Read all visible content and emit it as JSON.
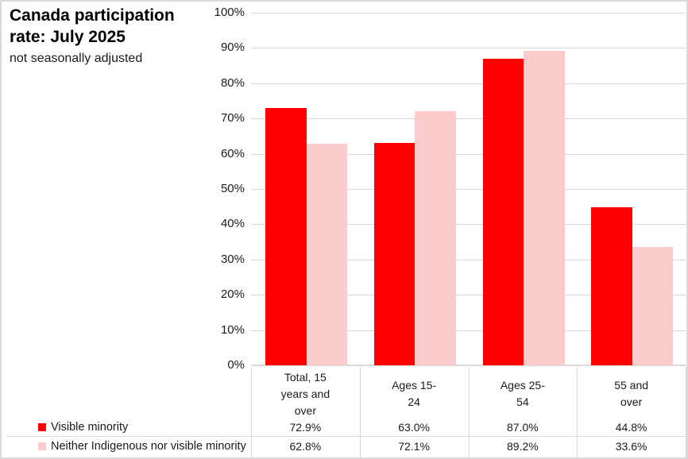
{
  "title": {
    "line1": "Canada participation",
    "line2": "rate: July 2025",
    "subtitle": "not seasonally adjusted"
  },
  "colors": {
    "series1": "#ff0000",
    "series2": "#fccbcb",
    "gridline": "#d9d9d9",
    "axis_line": "#d9d9d9",
    "frame_border": "#d9d9d9",
    "text": "#1a1a1a"
  },
  "chart_data": {
    "type": "bar",
    "title": "Canada participation rate: July 2025",
    "subtitle": "not seasonally adjusted",
    "categories": [
      "Total, 15 years and over",
      "Ages 15-24",
      "Ages 25-54",
      "55 and over"
    ],
    "category_label_lines": [
      [
        "Total, 15",
        "years and",
        "over"
      ],
      [
        "Ages 15-",
        "24"
      ],
      [
        "Ages 25-",
        "54"
      ],
      [
        "55 and",
        "over"
      ]
    ],
    "series": [
      {
        "name": "Visible minority",
        "color": "#ff0000",
        "values": [
          72.9,
          63.0,
          87.0,
          44.8
        ],
        "labels": [
          "72.9%",
          "63.0%",
          "87.0%",
          "44.8%"
        ]
      },
      {
        "name": "Neither Indigenous nor visible minority",
        "color": "#fccbcb",
        "values": [
          62.8,
          72.1,
          89.2,
          33.6
        ],
        "labels": [
          "62.8%",
          "72.1%",
          "89.2%",
          "33.6%"
        ]
      }
    ],
    "y_axis": {
      "min": 0,
      "max": 100,
      "step": 10,
      "tick_labels": [
        "0%",
        "10%",
        "20%",
        "30%",
        "40%",
        "50%",
        "60%",
        "70%",
        "80%",
        "90%",
        "100%"
      ]
    },
    "grid": true,
    "legend_position": "bottom-table"
  }
}
